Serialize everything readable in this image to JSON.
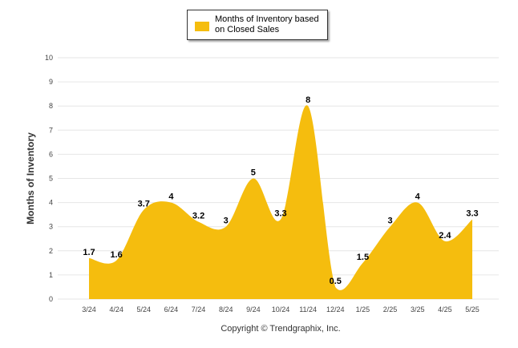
{
  "chart_data": {
    "type": "area",
    "title": "",
    "xlabel": "",
    "ylabel": "Months of Inventory",
    "categories": [
      "3/24",
      "4/24",
      "5/24",
      "6/24",
      "7/24",
      "8/24",
      "9/24",
      "10/24",
      "11/24",
      "12/24",
      "1/25",
      "2/25",
      "3/25",
      "4/25",
      "5/25"
    ],
    "series": [
      {
        "name": "Months of Inventory based on Closed Sales",
        "values": [
          1.7,
          1.6,
          3.7,
          4,
          3.2,
          3,
          5,
          3.3,
          8,
          0.5,
          1.5,
          3,
          4,
          2.4,
          3.3
        ],
        "labels": [
          "1.7",
          "1.6",
          "3.7",
          "4",
          "3.2",
          "3",
          "5",
          "3.3",
          "8",
          "0.5",
          "1.5",
          "3",
          "4",
          "2.4",
          "3.3"
        ],
        "color": "#F5BD0E"
      }
    ],
    "ylim": [
      0,
      10
    ],
    "yticks": [
      0,
      1,
      2,
      3,
      4,
      5,
      6,
      7,
      8,
      9,
      10
    ],
    "grid": true,
    "legend_position": "top-center",
    "credit": "Copyright © Trendgraphix, Inc."
  }
}
